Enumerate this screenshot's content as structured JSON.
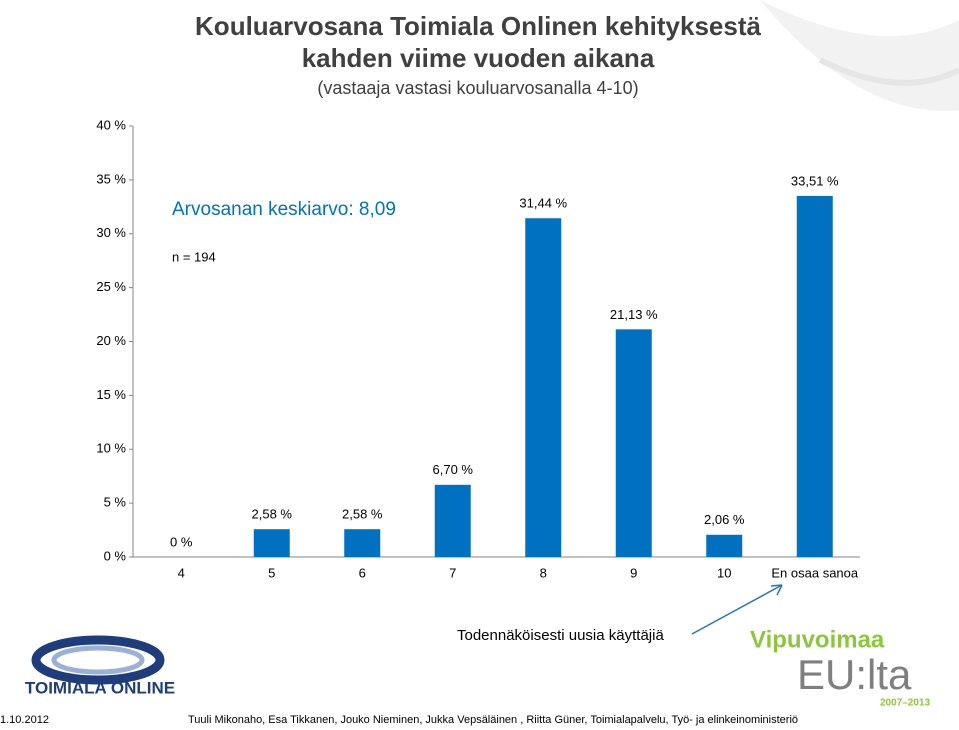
{
  "chart_data": {
    "type": "bar",
    "title": "Kouluarvosana Toimiala Onlinen kehityksestä",
    "title_line2": "kahden viime vuoden aikana",
    "subtitle": "(vastaaja vastasi kouluarvosanalla 4-10)",
    "categories": [
      "4",
      "5",
      "6",
      "7",
      "8",
      "9",
      "10",
      "En osaa sanoa"
    ],
    "values": [
      0,
      2.58,
      2.58,
      6.7,
      31.44,
      21.13,
      2.06,
      33.51
    ],
    "value_labels": [
      "0 %",
      "2,58 %",
      "2,58 %",
      "6,70 %",
      "31,44 %",
      "21,13 %",
      "2,06 %",
      "33,51 %"
    ],
    "color": "#0070c0",
    "ylim": [
      0,
      40
    ],
    "yticks": [
      {
        "value": 0,
        "label": "0 %"
      },
      {
        "value": 5,
        "label": "5 %"
      },
      {
        "value": 10,
        "label": "10 %"
      },
      {
        "value": 15,
        "label": "15 %"
      },
      {
        "value": 20,
        "label": "20 %"
      },
      {
        "value": 25,
        "label": "25 %"
      },
      {
        "value": 30,
        "label": "30 %"
      },
      {
        "value": 35,
        "label": "35 %"
      },
      {
        "value": 40,
        "label": "40 %"
      }
    ],
    "grid": false,
    "annotations": [
      "Arvosanan keskiarvo: 8,09",
      "n = 194",
      "Todennäköisesti uusia käyttäjiä"
    ]
  },
  "footer": {
    "date": "1.10.2012",
    "authors": "Tuuli Mikonaho, Esa Tikkanen, Jouko Nieminen, Jukka Vepsäläinen , Riitta Güner, Toimialapalvelu, Työ- ja elinkeinoministeriö"
  },
  "logos": {
    "left": "TOIMIALA ONLINE",
    "right_top": "Vipuvoimaa",
    "right_main": "EU:lta",
    "right_years": "2007–2013"
  }
}
